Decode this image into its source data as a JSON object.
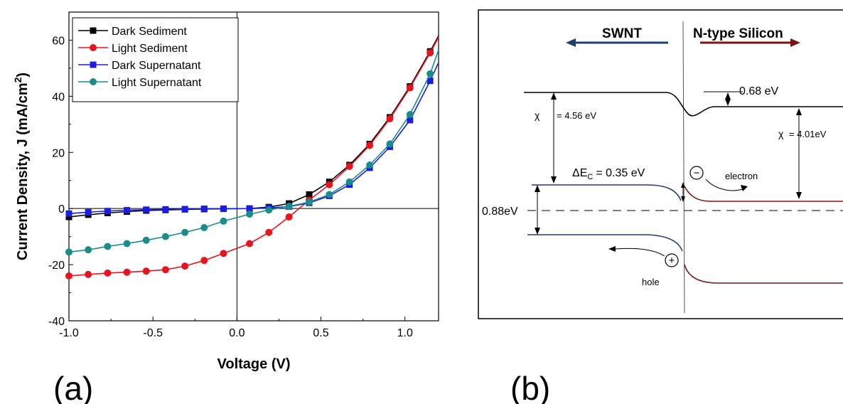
{
  "panel_a": {
    "label": "(a)",
    "xlabel": "Voltage (V)",
    "ylabel_main": "Current Density, J (mA/cm",
    "ylabel_sup": "2",
    "ylabel_end": ")"
  },
  "panel_b": {
    "label": "(b)",
    "left_material": "SWNT",
    "right_material": "N-type Silicon",
    "chi_symbol": "χ",
    "chi_left": "= 4.56 eV",
    "chi_right": "= 4.01eV",
    "vacuum_offset": "0.68 eV",
    "delta_ec_main": "ΔE",
    "delta_ec_sub": "C",
    "delta_ec_value": "= 0.35 eV",
    "gap_label": "0.88eV",
    "electron_label": "electron",
    "hole_label": "hole",
    "minus_sign": "−",
    "plus_sign": "+",
    "colors": {
      "swnt": "#1f3f73",
      "silicon": "#7a1414",
      "black": "#000000"
    }
  },
  "chart_data": {
    "type": "line",
    "xlabel": "Voltage (V)",
    "ylabel": "Current Density, J (mA/cm2)",
    "xlim": [
      -1.0,
      1.2
    ],
    "ylim": [
      -40,
      70
    ],
    "xticks": [
      "-1.0",
      "-0.5",
      "0.0",
      "0.5",
      "1.0"
    ],
    "xtick_values": [
      -1.0,
      -0.5,
      0.0,
      0.5,
      1.0
    ],
    "yticks": [
      "-40",
      "-20",
      "0",
      "20",
      "40",
      "60"
    ],
    "ytick_values": [
      -40,
      -20,
      0,
      20,
      40,
      60
    ],
    "legend_position": "top-left",
    "series": [
      {
        "name": "Dark Sediment",
        "color": "#000000",
        "marker": "square",
        "x": [
          -1.0,
          -0.885,
          -0.77,
          -0.655,
          -0.54,
          -0.425,
          -0.31,
          -0.195,
          -0.08,
          0.075,
          0.19,
          0.31,
          0.43,
          0.55,
          0.67,
          0.79,
          0.91,
          1.03,
          1.15,
          1.2
        ],
        "y": [
          -3.0,
          -2.2,
          -1.6,
          -1.1,
          -0.7,
          -0.5,
          -0.3,
          -0.2,
          -0.1,
          0.0,
          0.5,
          1.8,
          5.0,
          9.5,
          15.5,
          23.0,
          32.5,
          43.5,
          56.0,
          61.5
        ]
      },
      {
        "name": "Light Sediment",
        "color": "#e8131c",
        "marker": "circle",
        "x": [
          -1.0,
          -0.885,
          -0.77,
          -0.655,
          -0.54,
          -0.425,
          -0.31,
          -0.195,
          -0.08,
          0.075,
          0.19,
          0.31,
          0.43,
          0.55,
          0.67,
          0.79,
          0.91,
          1.03,
          1.15,
          1.2
        ],
        "y": [
          -24.0,
          -23.5,
          -23.0,
          -22.7,
          -22.3,
          -21.8,
          -20.5,
          -18.5,
          -16.0,
          -12.5,
          -8.5,
          -3.0,
          3.0,
          8.5,
          15.0,
          22.5,
          32.0,
          43.0,
          55.5,
          61.0
        ]
      },
      {
        "name": "Dark Supernatant",
        "color": "#1a1ee0",
        "marker": "square",
        "x": [
          -1.0,
          -0.885,
          -0.77,
          -0.655,
          -0.54,
          -0.425,
          -0.31,
          -0.195,
          -0.08,
          0.075,
          0.19,
          0.31,
          0.43,
          0.55,
          0.67,
          0.79,
          0.91,
          1.03,
          1.15,
          1.2
        ],
        "y": [
          -1.8,
          -1.3,
          -0.9,
          -0.6,
          -0.4,
          -0.3,
          -0.2,
          -0.1,
          -0.05,
          0.0,
          0.2,
          0.7,
          2.0,
          4.5,
          8.5,
          14.5,
          22.0,
          31.5,
          45.5,
          52.0
        ]
      },
      {
        "name": "Light Supernatant",
        "color": "#1a8c8c",
        "marker": "circle",
        "x": [
          -1.0,
          -0.885,
          -0.77,
          -0.655,
          -0.54,
          -0.425,
          -0.31,
          -0.195,
          -0.08,
          0.075,
          0.19,
          0.31,
          0.43,
          0.55,
          0.67,
          0.79,
          0.91,
          1.03,
          1.15,
          1.2
        ],
        "y": [
          -15.5,
          -14.7,
          -13.5,
          -12.5,
          -11.3,
          -10.0,
          -8.5,
          -6.8,
          -4.5,
          -2.0,
          -0.5,
          0.8,
          2.3,
          5.0,
          9.5,
          15.5,
          23.0,
          33.5,
          48.0,
          56.5
        ]
      }
    ]
  }
}
